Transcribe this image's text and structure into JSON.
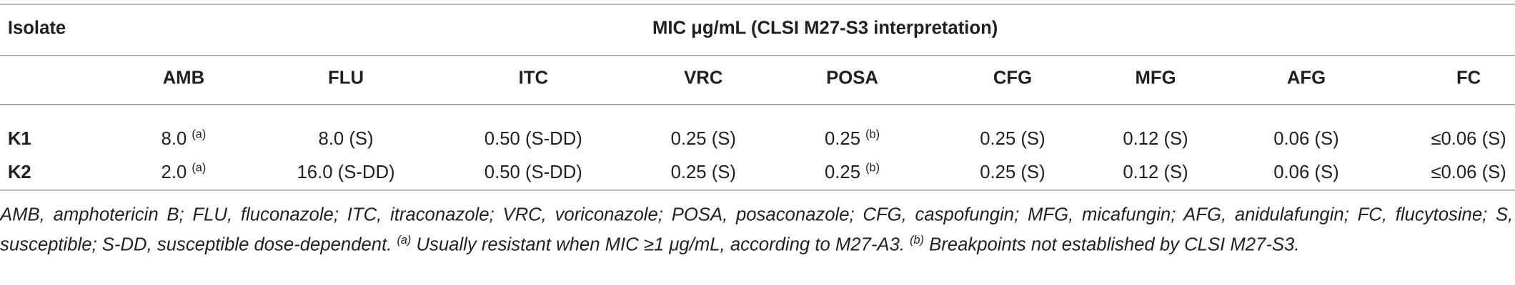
{
  "header": {
    "isolate": "Isolate",
    "group": "MIC μg/mL (CLSI M27-S3 interpretation)"
  },
  "columns": [
    "AMB",
    "FLU",
    "ITC",
    "VRC",
    "POSA",
    "CFG",
    "MFG",
    "AFG",
    "FC"
  ],
  "rows": [
    {
      "isolate": "K1",
      "cells": [
        {
          "text": "8.0",
          "sup": "(a)"
        },
        {
          "text": "8.0 (S)"
        },
        {
          "text": "0.50 (S-DD)"
        },
        {
          "text": "0.25 (S)"
        },
        {
          "text": "0.25",
          "sup": "(b)"
        },
        {
          "text": "0.25 (S)"
        },
        {
          "text": "0.12 (S)"
        },
        {
          "text": "0.06 (S)"
        },
        {
          "text": "≤0.06 (S)"
        }
      ]
    },
    {
      "isolate": "K2",
      "cells": [
        {
          "text": "2.0",
          "sup": "(a)"
        },
        {
          "text": "16.0 (S-DD)"
        },
        {
          "text": "0.50 (S-DD)"
        },
        {
          "text": "0.25 (S)"
        },
        {
          "text": "0.25",
          "sup": "(b)"
        },
        {
          "text": "0.25 (S)"
        },
        {
          "text": "0.12 (S)"
        },
        {
          "text": "0.06 (S)"
        },
        {
          "text": "≤0.06 (S)"
        }
      ]
    }
  ],
  "footnote": {
    "abbreviations": "AMB, amphotericin B; FLU, fluconazole; ITC, itraconazole; VRC, voriconazole; POSA, posaconazole; CFG, caspofungin; MFG, micafungin; AFG, anidulafungin; FC, flucytosine; S, susceptible; S-DD, susceptible dose-dependent.",
    "note_a_mark": "(a)",
    "note_a": "Usually resistant when MIC ≥1 μg/mL, according to M27-A3.",
    "note_b_mark": "(b)",
    "note_b": "Breakpoints not established by CLSI M27-S3."
  }
}
